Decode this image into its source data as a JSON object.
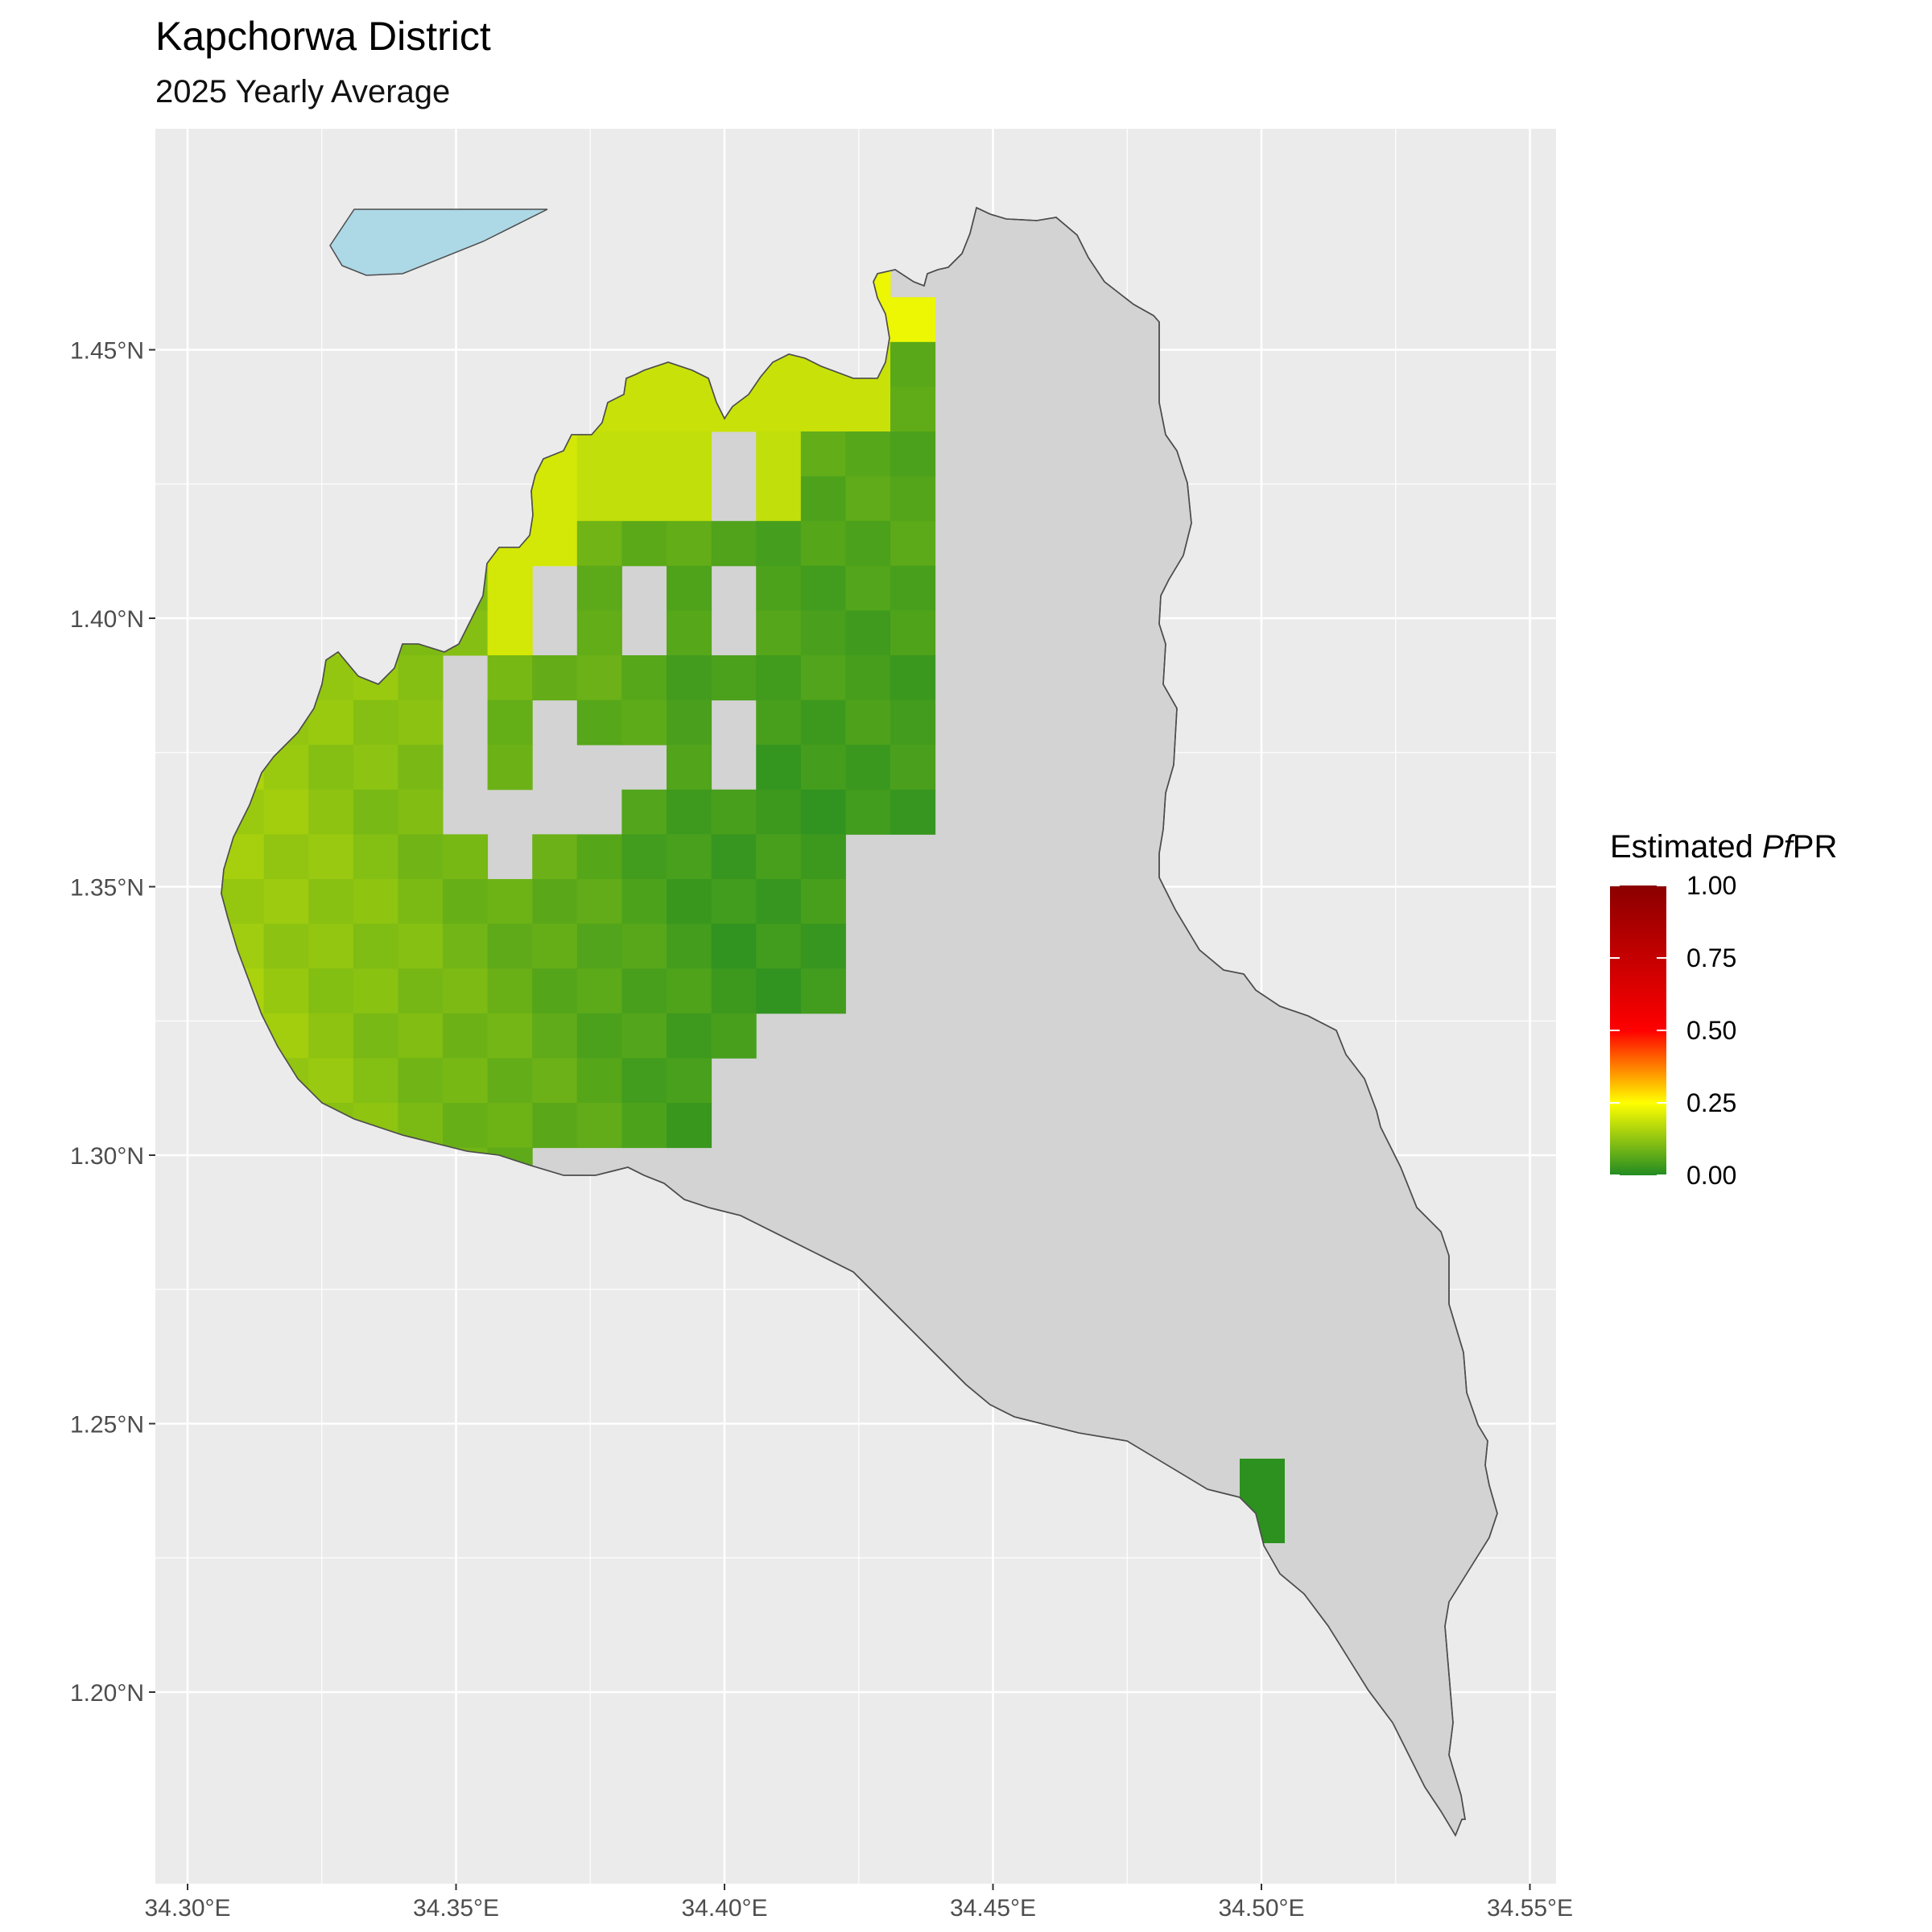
{
  "title": "Kapchorwa District",
  "subtitle": "2025 Yearly Average",
  "map": {
    "type": "raster-choropleth",
    "x_axis": {
      "ticks": [
        34.3,
        34.35,
        34.4,
        34.45,
        34.5,
        34.55
      ],
      "tick_labels": [
        "34.30°E",
        "34.35°E",
        "34.40°E",
        "34.45°E",
        "34.50°E",
        "34.55°E"
      ]
    },
    "y_axis": {
      "ticks": [
        1.45,
        1.4,
        1.35,
        1.3,
        1.25,
        1.2
      ],
      "tick_labels": [
        "1.45°N",
        "1.40°N",
        "1.35°N",
        "1.30°N",
        "1.25°N",
        "1.20°N"
      ]
    },
    "grid": true,
    "colors": {
      "panel_background": "#ebebeb",
      "district_fill": "#d3d3d3",
      "district_outline": "#4d4d4d",
      "lake_fill": "#add8e6",
      "gridline": "#ffffff"
    }
  },
  "legend": {
    "title_prefix": "Estimated ",
    "title_italic": "Pf",
    "title_suffix": "PR",
    "breaks": [
      "1.00",
      "0.75",
      "0.50",
      "0.25",
      "0.00"
    ],
    "color_stops": [
      {
        "value": 0.0,
        "color": "#228b22"
      },
      {
        "value": 0.25,
        "color": "#ffff00"
      },
      {
        "value": 0.5,
        "color": "#ff0000"
      },
      {
        "value": 1.0,
        "color": "#8b0000"
      }
    ]
  }
}
